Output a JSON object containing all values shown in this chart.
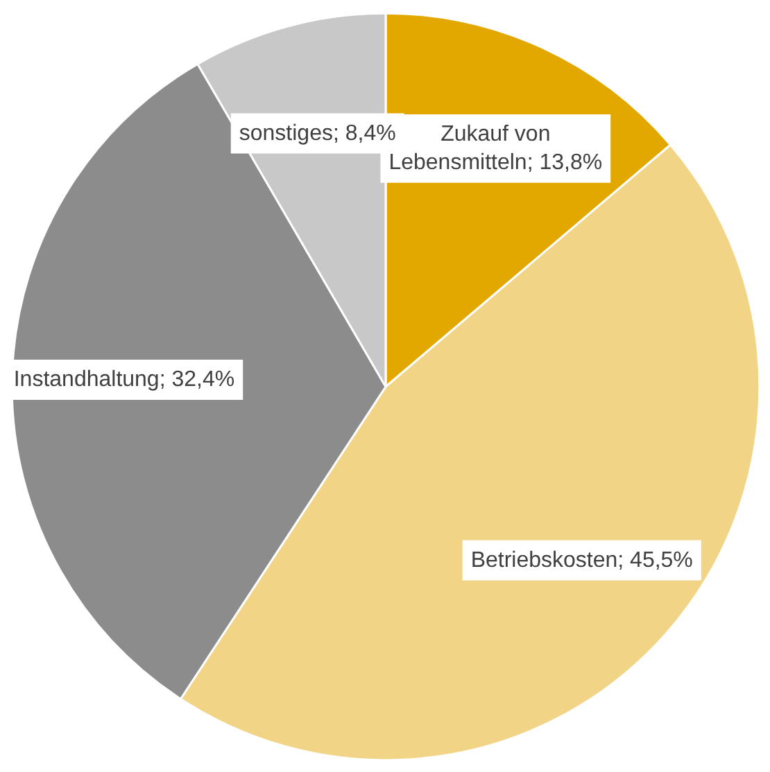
{
  "chart_data": {
    "type": "pie",
    "categories": [
      "Zukauf von Lebensmitteln",
      "Betriebskosten",
      "Instandhaltung",
      "sonstiges"
    ],
    "values": [
      13.8,
      45.5,
      32.4,
      8.4
    ],
    "value_labels": [
      "13,8%",
      "45,5%",
      "32,4%",
      "8,4%"
    ],
    "colors": [
      "#e2a800",
      "#f2d486",
      "#8c8c8c",
      "#c8c8c8"
    ]
  }
}
